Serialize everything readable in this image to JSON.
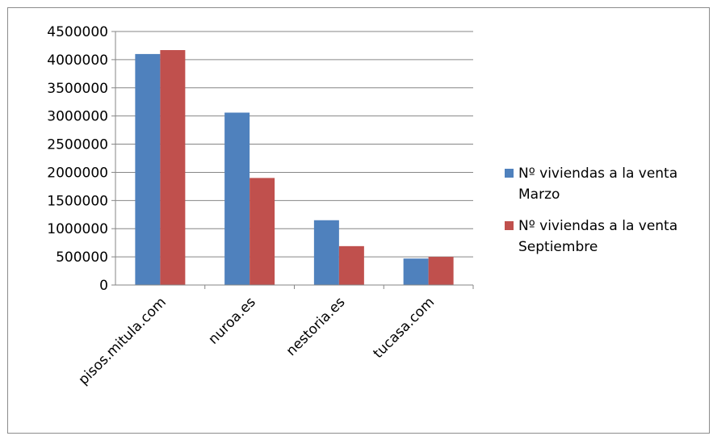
{
  "chart_data": {
    "type": "bar",
    "title": "",
    "xlabel": "",
    "ylabel": "",
    "categories": [
      "pisos.mitula.com",
      "nuroa.es",
      "nestoria.es",
      "tucasa.com"
    ],
    "series": [
      {
        "name": "Nº viviendas a la venta Marzo",
        "name_lines": [
          "Nº viviendas a la venta",
          "Marzo"
        ],
        "color": "#4f81bd",
        "values": [
          4100000,
          3060000,
          1150000,
          470000
        ]
      },
      {
        "name": "Nº viviendas a la venta Septiembre",
        "name_lines": [
          "Nº viviendas a la venta",
          "Septiembre"
        ],
        "color": "#c0504d",
        "values": [
          4170000,
          1900000,
          690000,
          500000
        ]
      }
    ],
    "ylim": [
      0,
      4500000
    ],
    "yticks": [
      "0",
      "500000",
      "1000000",
      "1500000",
      "2000000",
      "2500000",
      "3000000",
      "3500000",
      "4000000",
      "4500000"
    ],
    "grid": true,
    "legend_position": "right",
    "gridline_color": "#868686"
  }
}
